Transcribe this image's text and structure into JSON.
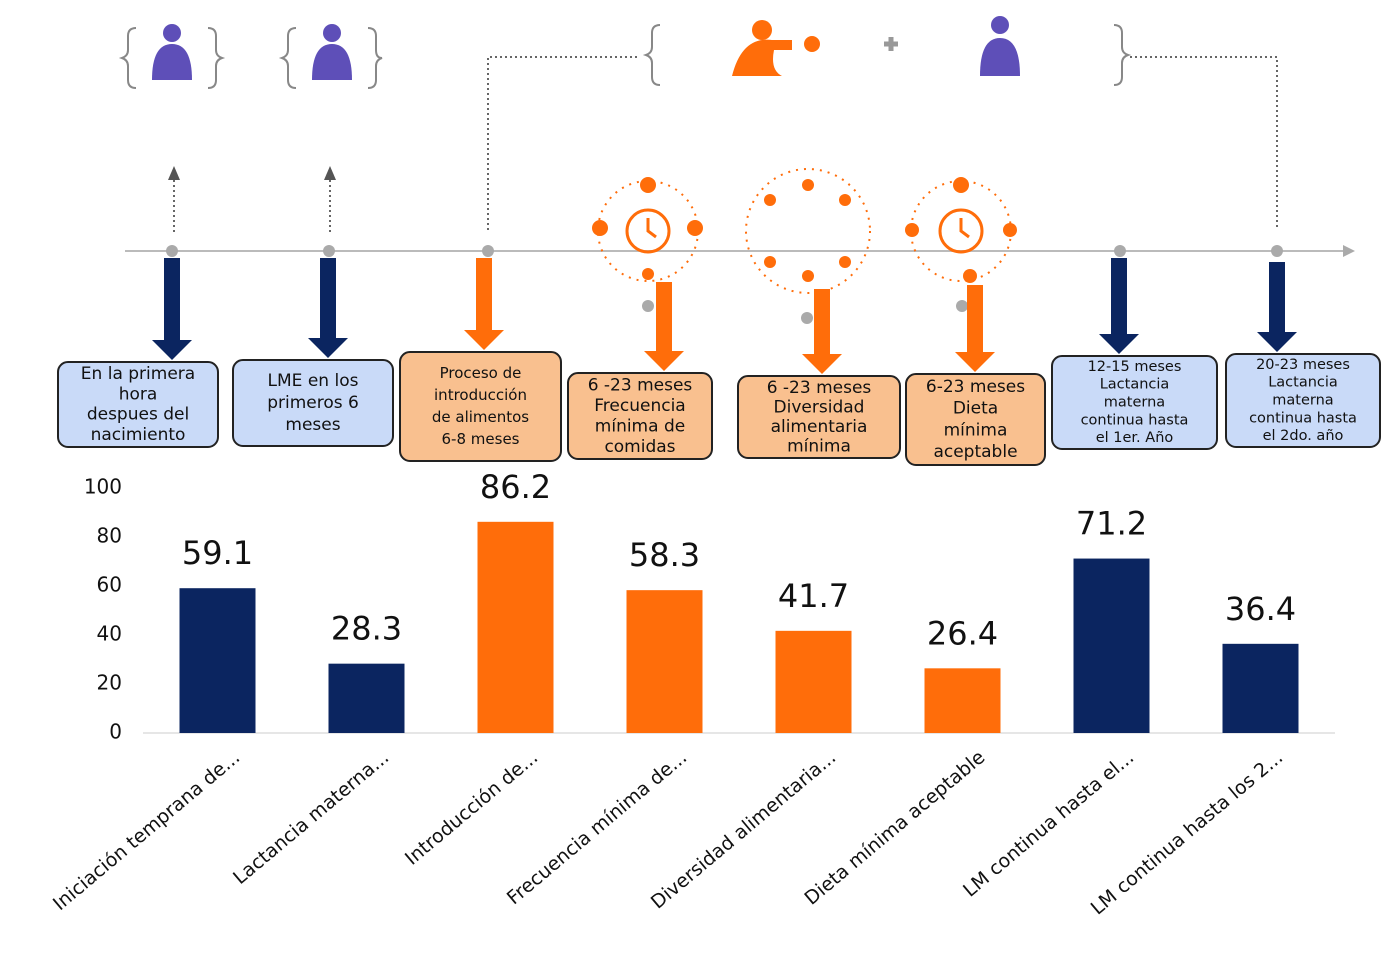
{
  "timeline": {
    "boxes": [
      {
        "kind": "lactancia",
        "lines": [
          "En la primera",
          "hora",
          "despues del",
          "nacimiento"
        ]
      },
      {
        "kind": "lactancia",
        "lines": [
          "LME en los",
          "primeros 6",
          "meses"
        ]
      },
      {
        "kind": "alimentacion",
        "lines": [
          "Proceso de",
          "introducción",
          "de alimentos",
          "6-8 meses"
        ]
      },
      {
        "kind": "alimentacion",
        "lines": [
          "6 -23 meses",
          "Frecuencia",
          "mínima de",
          "comidas"
        ]
      },
      {
        "kind": "alimentacion",
        "lines": [
          "6 -23 meses",
          "Diversidad",
          "alimentaria",
          "mínima"
        ]
      },
      {
        "kind": "alimentacion",
        "lines": [
          "6-23 meses",
          "Dieta",
          "mínima",
          "aceptable"
        ]
      },
      {
        "kind": "lactancia",
        "lines": [
          "12-15 meses",
          "Lactancia",
          "materna",
          "continua hasta",
          "el 1er. Año"
        ]
      },
      {
        "kind": "lactancia",
        "lines": [
          "20-23 meses",
          "Lactancia",
          "materna",
          "continua hasta",
          "el 2do. año"
        ]
      }
    ]
  },
  "chart_data": {
    "type": "bar",
    "categories": [
      "Iniciación temprana de...",
      "Lactancia materna...",
      "Introducción de...",
      "Frecuencia mínima de...",
      "Diversidad alimentaria...",
      "Dieta mínima aceptable",
      "LM continua hasta el...",
      "LM continua hasta los 2..."
    ],
    "values": [
      59.1,
      28.3,
      86.2,
      58.3,
      41.7,
      26.4,
      71.2,
      36.4
    ],
    "colors": [
      "#0b2560",
      "#0b2560",
      "#ff6d0a",
      "#ff6d0a",
      "#ff6d0a",
      "#ff6d0a",
      "#0b2560",
      "#0b2560"
    ],
    "ylim": [
      0,
      100
    ],
    "yticks": [
      0,
      20,
      40,
      60,
      80,
      100
    ],
    "grid": false
  }
}
